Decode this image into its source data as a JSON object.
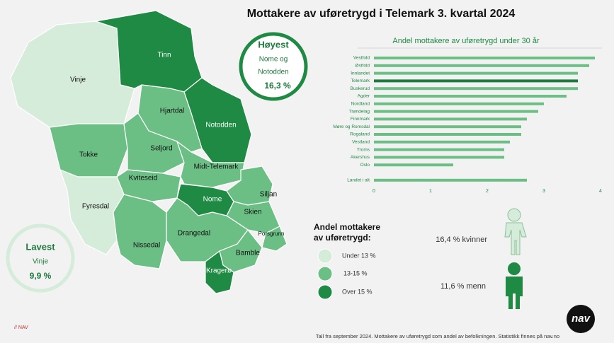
{
  "title": "Mottakere av uføretrygd i Telemark 3. kvartal  2024",
  "map": {
    "labels": [
      "Vinje",
      "Tinn",
      "Hjartdal",
      "Notodden",
      "Tokke",
      "Seljord",
      "Kviteseid",
      "Midt-Telemark",
      "Fyresdal",
      "Nome",
      "Siljan",
      "Skien",
      "Porsgrunn",
      "Nissedal",
      "Drangedal",
      "Bamble",
      "Kragerø"
    ]
  },
  "highest": {
    "heading": "Høyest",
    "lines": [
      "Nome og",
      "Notodden"
    ],
    "value": "16,3 %"
  },
  "lowest": {
    "heading": "Lavest",
    "name": "Vinje",
    "value": "9,9 %"
  },
  "legend": {
    "title": [
      "Andel mottakere",
      "av uføretrygd:"
    ],
    "items": [
      "Under 13 %",
      "13-15 %",
      "Over 15 %"
    ]
  },
  "gender": {
    "women": "16,4 % kvinner",
    "men": "11,6 % menn"
  },
  "footer": {
    "note": "Tall fra september 2024. Mottakere av uføretrygd som andel av befolkningen. Statistikk finnes på nav.no",
    "brand": "// NAV",
    "logo": "nav"
  },
  "chart_data": {
    "type": "bar",
    "orientation": "horizontal",
    "title": "Andel mottakere av uføretrygd under 30 år",
    "categories": [
      "Vestfold",
      "Østfold",
      "Innlandet",
      "Telemark",
      "Buskerud",
      "Agder",
      "Nordland",
      "Trøndelag",
      "Finnmark",
      "Møre og Romsdal",
      "Rogaland",
      "Vestland",
      "Troms",
      "Akershus",
      "Oslo",
      null,
      "Landet i alt"
    ],
    "values": [
      3.9,
      3.8,
      3.6,
      3.6,
      3.6,
      3.4,
      3.0,
      2.9,
      2.7,
      2.6,
      2.6,
      2.4,
      2.3,
      2.3,
      1.4,
      null,
      2.7
    ],
    "colors": [
      "#6cbf84",
      "#6cbf84",
      "#6cbf84",
      "#1e7a3e",
      "#6cbf84",
      "#6cbf84",
      "#6cbf84",
      "#6cbf84",
      "#6cbf84",
      "#6cbf84",
      "#6cbf84",
      "#6cbf84",
      "#6cbf84",
      "#6cbf84",
      "#6cbf84",
      null,
      "#6cbf84"
    ],
    "xlim": [
      0,
      4
    ],
    "xticks": [
      0,
      1,
      2,
      3,
      4
    ],
    "grid": false
  }
}
